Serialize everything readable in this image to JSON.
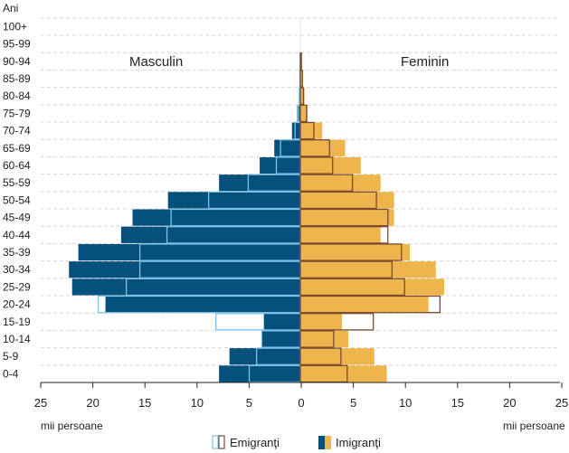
{
  "chart_data": {
    "type": "bar",
    "subtype": "population-pyramid",
    "ylabel": "Ani",
    "xlabel_left": "mii persoane",
    "xlabel_right": "mii persoane",
    "side_labels": {
      "male": "Masculin",
      "female": "Feminin"
    },
    "xlim": [
      -25,
      25
    ],
    "xticks": [
      "25",
      "20",
      "15",
      "10",
      "5",
      "0",
      "5",
      "10",
      "15",
      "20",
      "25"
    ],
    "categories": [
      "0-4",
      "5-9",
      "10-14",
      "15-19",
      "20-24",
      "25-29",
      "30-34",
      "35-39",
      "40-44",
      "45-49",
      "50-54",
      "55-59",
      "60-64",
      "65-69",
      "70-74",
      "75-79",
      "80-84",
      "85-89",
      "90-94",
      "95-99",
      "100+"
    ],
    "series": [
      {
        "name": "Imigranţi",
        "sex": "male",
        "values": [
          7.8,
          6.8,
          3.7,
          3.5,
          18.7,
          21.9,
          22.2,
          21.3,
          17.2,
          16.1,
          12.7,
          7.8,
          3.9,
          2.5,
          0.8,
          0.3,
          0.1,
          0.05,
          0.02,
          0,
          0
        ]
      },
      {
        "name": "Emigranţi",
        "sex": "male",
        "values": [
          4.9,
          4.2,
          3.7,
          8.1,
          19.4,
          16.7,
          15.4,
          15.4,
          12.8,
          12.4,
          8.8,
          5.0,
          2.3,
          1.9,
          0.5,
          0.2,
          0.1,
          0.05,
          0.02,
          0,
          0
        ]
      },
      {
        "name": "Imigranţi",
        "sex": "female",
        "values": [
          8.3,
          7.1,
          4.6,
          4.0,
          12.3,
          13.8,
          13.0,
          10.5,
          7.7,
          9.0,
          9.0,
          7.7,
          5.8,
          4.3,
          2.1,
          0.7,
          0.4,
          0.25,
          0.15,
          0,
          0
        ]
      },
      {
        "name": "Emigranţi",
        "sex": "female",
        "values": [
          4.5,
          3.9,
          3.2,
          7.0,
          13.4,
          10.0,
          8.8,
          9.7,
          8.4,
          8.4,
          7.3,
          5.0,
          3.1,
          2.8,
          1.3,
          0.6,
          0.3,
          0.2,
          0.1,
          0,
          0
        ]
      }
    ],
    "legend": {
      "position": "bottom",
      "items": [
        "Emigranţi",
        "Imigranţi"
      ]
    },
    "grid": "horizontal-dashed"
  },
  "colors": {
    "male_imm": "#05507d",
    "male_emig": "#7cc3e6",
    "female_imm": "#edb54b",
    "female_emig": "#7a4a30",
    "grid": "#cccccc"
  }
}
